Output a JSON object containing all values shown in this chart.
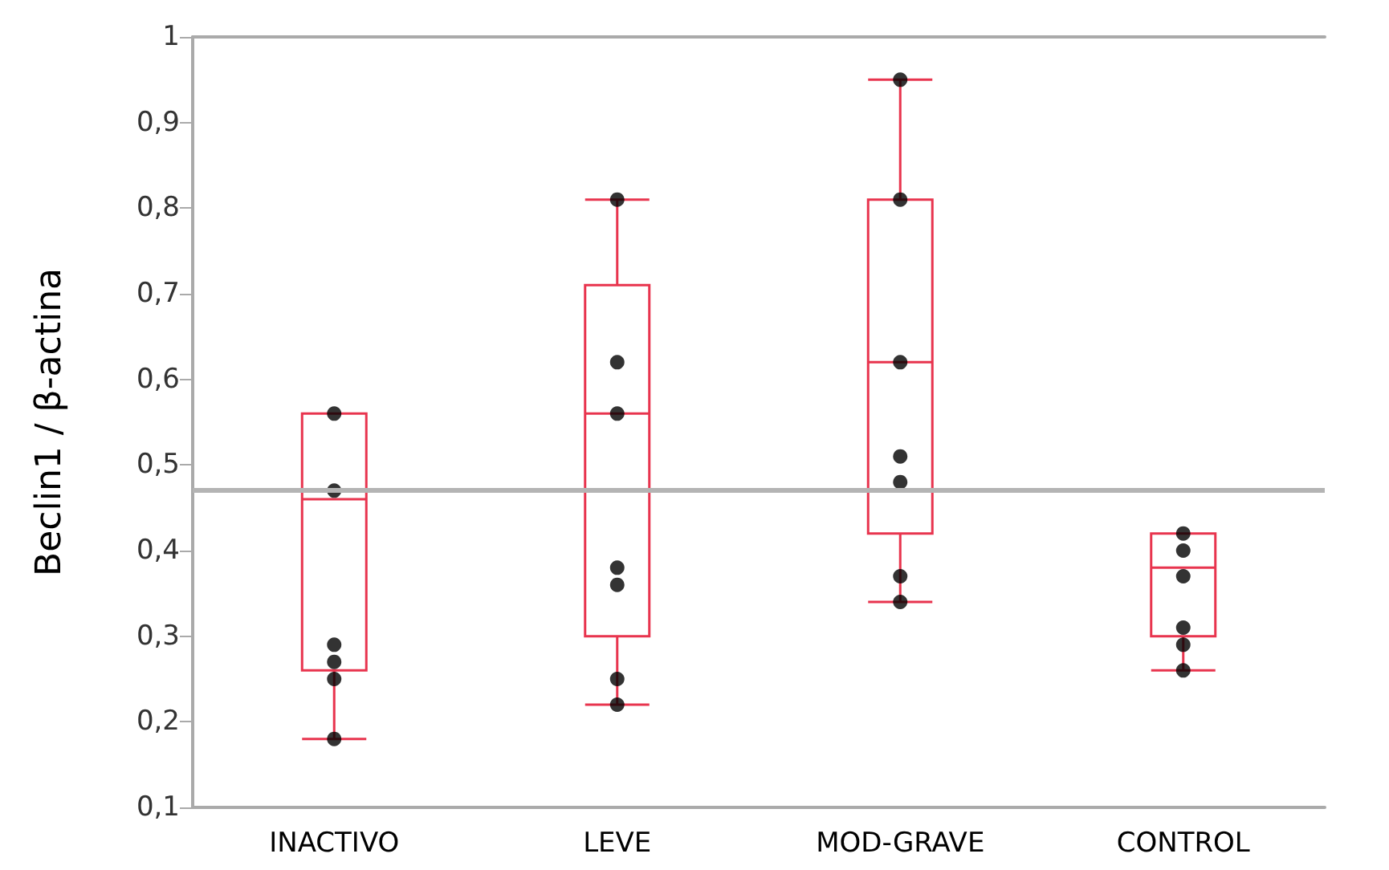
{
  "chart_data": {
    "type": "box",
    "ylabel": "Beclin1 / β-actina",
    "categories": [
      "INACTIVO",
      "LEVE",
      "MOD-GRAVE",
      "CONTROL"
    ],
    "ylim": [
      0.1,
      1
    ],
    "yticks": [
      {
        "value": 0.1,
        "label": "0,1"
      },
      {
        "value": 0.2,
        "label": "0,2"
      },
      {
        "value": 0.3,
        "label": "0,3"
      },
      {
        "value": 0.4,
        "label": "0,4"
      },
      {
        "value": 0.5,
        "label": "0,5"
      },
      {
        "value": 0.6,
        "label": "0,6"
      },
      {
        "value": 0.7,
        "label": "0,7"
      },
      {
        "value": 0.8,
        "label": "0,8"
      },
      {
        "value": 0.9,
        "label": "0,9"
      },
      1
    ],
    "grid": false,
    "series": [
      {
        "color": "#e8344e",
        "boxes": [
          {
            "low": 0.18,
            "q1": 0.26,
            "median": 0.46,
            "q3": 0.56,
            "high": 0.56
          },
          {
            "low": 0.22,
            "q1": 0.3,
            "median": 0.56,
            "q3": 0.71,
            "high": 0.81
          },
          {
            "low": 0.34,
            "q1": 0.42,
            "median": 0.62,
            "q3": 0.81,
            "high": 0.95
          },
          {
            "low": 0.26,
            "q1": 0.3,
            "median": 0.38,
            "q3": 0.42,
            "high": 0.42
          }
        ]
      },
      {
        "type": "scatter",
        "color": "#000000",
        "marker": "circle",
        "x": [
          "INACTIVO",
          "INACTIVO",
          "INACTIVO",
          "INACTIVO",
          "INACTIVO",
          "INACTIVO",
          "LEVE",
          "LEVE",
          "LEVE",
          "LEVE",
          "LEVE",
          "LEVE",
          "LEVE",
          "MOD-GRAVE",
          "MOD-GRAVE",
          "MOD-GRAVE",
          "MOD-GRAVE",
          "MOD-GRAVE",
          "MOD-GRAVE",
          "MOD-GRAVE",
          "CONTROL",
          "CONTROL",
          "CONTROL",
          "CONTROL",
          "CONTROL",
          "CONTROL"
        ],
        "values": [
          0.56,
          0.47,
          0.29,
          0.27,
          0.25,
          0.18,
          0.81,
          0.62,
          0.56,
          0.38,
          0.36,
          0.25,
          0.22,
          0.95,
          0.81,
          0.62,
          0.51,
          0.48,
          0.37,
          0.34,
          0.42,
          0.4,
          0.37,
          0.31,
          0.29,
          0.26
        ]
      }
    ],
    "ref_lines": [
      {
        "axis": "y",
        "value": 0.47,
        "color": "#b4b4b4"
      }
    ]
  }
}
